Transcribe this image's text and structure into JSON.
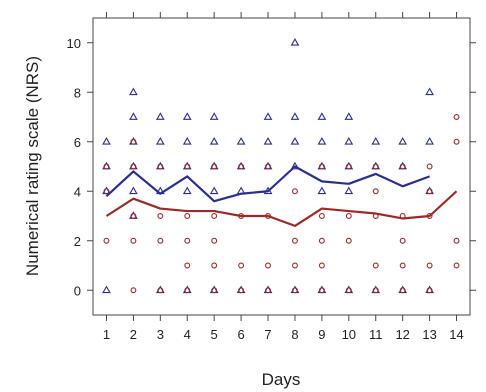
{
  "chart_data": {
    "type": "scatter",
    "xlabel": "Days",
    "ylabel": "Numerical rating scale (NRS)",
    "xlim": [
      0.5,
      14.5
    ],
    "ylim": [
      -1,
      11
    ],
    "xticks": [
      "1",
      "2",
      "3",
      "4",
      "5",
      "6",
      "7",
      "8",
      "9",
      "10",
      "11",
      "12",
      "13",
      "14"
    ],
    "yticks": [
      "0",
      "2",
      "4",
      "6",
      "8",
      "10"
    ],
    "grid": false,
    "legend": "none",
    "colors": {
      "blue": "#2b2f8f",
      "red": "#9b2a2a",
      "orange_marker": "#b8732f"
    },
    "series": [
      {
        "marker": "triangle",
        "color": "#2b2f8f",
        "points": [
          [
            1,
            0
          ],
          [
            1,
            4
          ],
          [
            1,
            5
          ],
          [
            1,
            6
          ],
          [
            2,
            3
          ],
          [
            2,
            4
          ],
          [
            2,
            5
          ],
          [
            2,
            6
          ],
          [
            2,
            7
          ],
          [
            2,
            8
          ],
          [
            3,
            0
          ],
          [
            3,
            4
          ],
          [
            3,
            5
          ],
          [
            3,
            6
          ],
          [
            3,
            7
          ],
          [
            4,
            0
          ],
          [
            4,
            4
          ],
          [
            4,
            5
          ],
          [
            4,
            6
          ],
          [
            4,
            7
          ],
          [
            5,
            0
          ],
          [
            5,
            4
          ],
          [
            5,
            5
          ],
          [
            5,
            6
          ],
          [
            5,
            7
          ],
          [
            6,
            0
          ],
          [
            6,
            4
          ],
          [
            6,
            5
          ],
          [
            6,
            6
          ],
          [
            7,
            0
          ],
          [
            7,
            4
          ],
          [
            7,
            5
          ],
          [
            7,
            6
          ],
          [
            7,
            7
          ],
          [
            8,
            0
          ],
          [
            8,
            5
          ],
          [
            8,
            6
          ],
          [
            8,
            7
          ],
          [
            8,
            10
          ],
          [
            9,
            0
          ],
          [
            9,
            4
          ],
          [
            9,
            5
          ],
          [
            9,
            6
          ],
          [
            9,
            7
          ],
          [
            10,
            0
          ],
          [
            10,
            4
          ],
          [
            10,
            5
          ],
          [
            10,
            6
          ],
          [
            10,
            7
          ],
          [
            11,
            0
          ],
          [
            11,
            5
          ],
          [
            11,
            6
          ],
          [
            12,
            0
          ],
          [
            12,
            5
          ],
          [
            12,
            6
          ],
          [
            13,
            0
          ],
          [
            13,
            4
          ],
          [
            13,
            6
          ],
          [
            13,
            8
          ]
        ]
      },
      {
        "marker": "circle",
        "color": "#9b2a2a",
        "points": [
          [
            1,
            2
          ],
          [
            1,
            4
          ],
          [
            1,
            5
          ],
          [
            2,
            0
          ],
          [
            2,
            2
          ],
          [
            2,
            3
          ],
          [
            2,
            5
          ],
          [
            2,
            6
          ],
          [
            3,
            0
          ],
          [
            3,
            2
          ],
          [
            3,
            3
          ],
          [
            3,
            5
          ],
          [
            4,
            0
          ],
          [
            4,
            1
          ],
          [
            4,
            2
          ],
          [
            4,
            3
          ],
          [
            4,
            5
          ],
          [
            5,
            0
          ],
          [
            5,
            1
          ],
          [
            5,
            2
          ],
          [
            5,
            3
          ],
          [
            5,
            5
          ],
          [
            6,
            0
          ],
          [
            6,
            1
          ],
          [
            6,
            3
          ],
          [
            6,
            5
          ],
          [
            7,
            0
          ],
          [
            7,
            1
          ],
          [
            7,
            3
          ],
          [
            7,
            5
          ],
          [
            8,
            0
          ],
          [
            8,
            1
          ],
          [
            8,
            2
          ],
          [
            8,
            4
          ],
          [
            9,
            0
          ],
          [
            9,
            1
          ],
          [
            9,
            2
          ],
          [
            9,
            3
          ],
          [
            9,
            5
          ],
          [
            10,
            0
          ],
          [
            10,
            2
          ],
          [
            10,
            3
          ],
          [
            10,
            5
          ],
          [
            11,
            0
          ],
          [
            11,
            1
          ],
          [
            11,
            3
          ],
          [
            11,
            4
          ],
          [
            11,
            5
          ],
          [
            12,
            0
          ],
          [
            12,
            1
          ],
          [
            12,
            2
          ],
          [
            12,
            3
          ],
          [
            12,
            5
          ],
          [
            13,
            0
          ],
          [
            13,
            1
          ],
          [
            13,
            3
          ],
          [
            13,
            4
          ],
          [
            13,
            5
          ],
          [
            14,
            1
          ],
          [
            14,
            2
          ],
          [
            14,
            6
          ],
          [
            14,
            7
          ]
        ]
      },
      {
        "type": "line",
        "color": "#2b2f8f",
        "values": [
          3.8,
          4.8,
          3.9,
          4.6,
          3.6,
          3.9,
          4.0,
          5.0,
          4.4,
          4.3,
          4.7,
          4.2,
          4.6
        ]
      },
      {
        "type": "line",
        "color": "#9b2a2a",
        "values": [
          3.0,
          3.7,
          3.3,
          3.2,
          3.2,
          3.0,
          3.0,
          2.6,
          3.3,
          3.2,
          3.1,
          2.9,
          3.0,
          4.0
        ]
      }
    ]
  }
}
